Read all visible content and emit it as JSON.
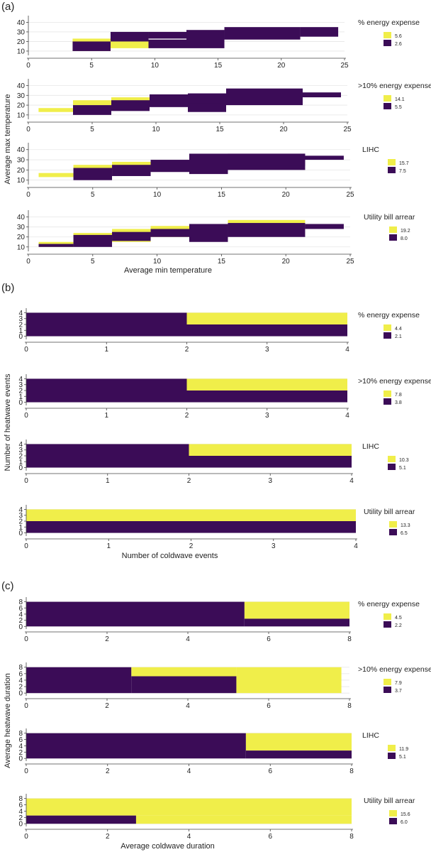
{
  "colors": {
    "high": "#f0ee4a",
    "low": "#3b0c57",
    "axis": "#444444",
    "grid": "#e6e6e6"
  },
  "chart_data": [
    {
      "panel": "(a)",
      "type": "heatmap",
      "xlabel": "Average min temperature",
      "ylabel": "Average max temperature",
      "xticks": [
        0,
        5,
        10,
        15,
        20,
        25
      ],
      "yticks": [
        10,
        20,
        30,
        40
      ],
      "xlim": [
        0,
        25
      ],
      "ylim": [
        7,
        44
      ],
      "subplots": [
        {
          "label": "% energy expense",
          "legend": [
            "5.6",
            "2.6"
          ],
          "rects": [
            [
              3.5,
              6.5,
              10,
              23,
              0
            ],
            [
              6.5,
              9.5,
              13,
              25,
              0
            ],
            [
              3.5,
              6.5,
              10,
              20,
              1
            ],
            [
              6.5,
              9.5,
              20,
              30,
              1
            ],
            [
              9.5,
              12.5,
              23,
              30,
              1
            ],
            [
              12.5,
              15.5,
              20,
              32,
              1
            ],
            [
              9.5,
              15.5,
              13,
              22,
              1
            ],
            [
              15.5,
              21.5,
              22,
              35,
              1
            ],
            [
              21.5,
              24.5,
              25,
              35,
              1
            ]
          ]
        },
        {
          "label": ">10% energy expense",
          "legend": [
            "14.1",
            "5.5"
          ],
          "rects": [
            [
              0.8,
              3.5,
              13,
              17,
              0
            ],
            [
              3.5,
              6.5,
              20,
              25,
              0
            ],
            [
              6.5,
              9.5,
              24,
              28,
              0
            ],
            [
              3.5,
              6.5,
              10,
              20,
              1
            ],
            [
              6.5,
              9.5,
              14,
              25,
              1
            ],
            [
              9.5,
              12.5,
              18,
              31,
              1
            ],
            [
              12.5,
              15.5,
              21,
              32,
              1
            ],
            [
              12.5,
              15.5,
              13,
              22,
              1
            ],
            [
              15.5,
              21.5,
              20,
              37,
              1
            ],
            [
              21.5,
              24.5,
              28,
              33,
              1
            ]
          ]
        },
        {
          "label": "LIHC",
          "legend": [
            "15.7",
            "7.5"
          ],
          "rects": [
            [
              0.8,
              3.5,
              13,
              17,
              0
            ],
            [
              3.5,
              6.5,
              20,
              25,
              0
            ],
            [
              6.5,
              9.5,
              24,
              28,
              0
            ],
            [
              3.5,
              6.5,
              10,
              22,
              1
            ],
            [
              6.5,
              9.5,
              14,
              25,
              1
            ],
            [
              9.5,
              12.5,
              18,
              30,
              1
            ],
            [
              12.5,
              15.5,
              16,
              32,
              1
            ],
            [
              12.5,
              21.5,
              20,
              36,
              1
            ],
            [
              15.5,
              21.5,
              24,
              36,
              1
            ],
            [
              21.5,
              24.5,
              30,
              34,
              1
            ]
          ]
        },
        {
          "label": "Utility bill arrear",
          "legend": [
            "19.2",
            "8.0"
          ],
          "rects": [
            [
              0.8,
              3.5,
              10,
              15,
              0
            ],
            [
              3.5,
              6.5,
              20,
              24,
              0
            ],
            [
              6.5,
              9.5,
              15,
              28,
              0
            ],
            [
              9.5,
              12.5,
              20,
              31,
              0
            ],
            [
              15.5,
              21.5,
              32,
              37,
              0
            ],
            [
              0.8,
              3.5,
              10,
              13,
              1
            ],
            [
              3.5,
              6.5,
              10,
              22,
              1
            ],
            [
              6.5,
              9.5,
              16,
              25,
              1
            ],
            [
              9.5,
              12.5,
              20,
              28,
              1
            ],
            [
              12.5,
              15.5,
              15,
              33,
              1
            ],
            [
              15.5,
              21.5,
              20,
              34,
              1
            ],
            [
              21.5,
              24.5,
              28,
              33,
              1
            ]
          ]
        }
      ]
    },
    {
      "panel": "(b)",
      "type": "heatmap",
      "xlabel": "Number of coldwave events",
      "ylabel": "Number of heatwave events",
      "xticks": [
        0,
        1,
        2,
        3,
        4
      ],
      "yticks": [
        0,
        1,
        2,
        3,
        4
      ],
      "xlim": [
        0,
        4
      ],
      "ylim": [
        -0.3,
        4.3
      ],
      "subplots": [
        {
          "label": "% energy expense",
          "legend": [
            "4.4",
            "2.1"
          ],
          "rects": [
            [
              2,
              4,
              2,
              4,
              0
            ],
            [
              0,
              2,
              0,
              4,
              1
            ],
            [
              2,
              4,
              0,
              2,
              1
            ]
          ]
        },
        {
          "label": ">10% energy expense",
          "legend": [
            "7.8",
            "3.8"
          ],
          "rects": [
            [
              2,
              4,
              2,
              4,
              0
            ],
            [
              0,
              2,
              0,
              4,
              1
            ],
            [
              2,
              4,
              0,
              2,
              1
            ]
          ]
        },
        {
          "label": "LIHC",
          "legend": [
            "10.3",
            "5.1"
          ],
          "rects": [
            [
              2,
              4,
              2,
              4,
              0
            ],
            [
              0,
              2,
              0,
              4,
              1
            ],
            [
              2,
              4,
              0,
              2,
              1
            ]
          ]
        },
        {
          "label": "Utility bill arrear",
          "legend": [
            "13.3",
            "6.5"
          ],
          "rects": [
            [
              0,
              4,
              2,
              4,
              0
            ],
            [
              0,
              4,
              0,
              2,
              1
            ]
          ]
        }
      ]
    },
    {
      "panel": "(c)",
      "type": "heatmap",
      "xlabel": "Average coldwave duration",
      "ylabel": "Average heatwave duration",
      "xticks": [
        0,
        2,
        4,
        6,
        8
      ],
      "yticks": [
        0,
        2,
        4,
        6,
        8
      ],
      "xlim": [
        0,
        8
      ],
      "ylim": [
        -0.4,
        8.6
      ],
      "subplots": [
        {
          "label": "% energy expense",
          "legend": [
            "4.5",
            "2.2"
          ],
          "rects": [
            [
              5.4,
              8,
              2.5,
              8,
              0
            ],
            [
              0,
              5.4,
              0,
              8,
              1
            ],
            [
              5.4,
              8,
              0,
              2.5,
              1
            ]
          ]
        },
        {
          "label": ">10% energy expense",
          "legend": [
            "7.9",
            "3.7"
          ],
          "rects": [
            [
              2.6,
              5.2,
              5.2,
              8,
              0
            ],
            [
              5.2,
              7.8,
              0,
              8,
              0
            ],
            [
              0,
              2.6,
              0,
              8,
              1
            ],
            [
              2.6,
              5.2,
              0,
              5.2,
              1
            ]
          ]
        },
        {
          "label": "LIHC",
          "legend": [
            "11.9",
            "5.1"
          ],
          "rects": [
            [
              5.4,
              8,
              2.5,
              8,
              0
            ],
            [
              0,
              5.4,
              0,
              8,
              1
            ],
            [
              5.4,
              8,
              0,
              2.5,
              1
            ]
          ]
        },
        {
          "label": "Utility bill arrear",
          "legend": [
            "15.6",
            "6.0"
          ],
          "rects": [
            [
              0,
              8,
              2.6,
              8,
              0
            ],
            [
              2.7,
              8,
              0,
              2.6,
              0
            ],
            [
              0,
              2.7,
              0,
              2.6,
              1
            ]
          ]
        }
      ]
    }
  ]
}
